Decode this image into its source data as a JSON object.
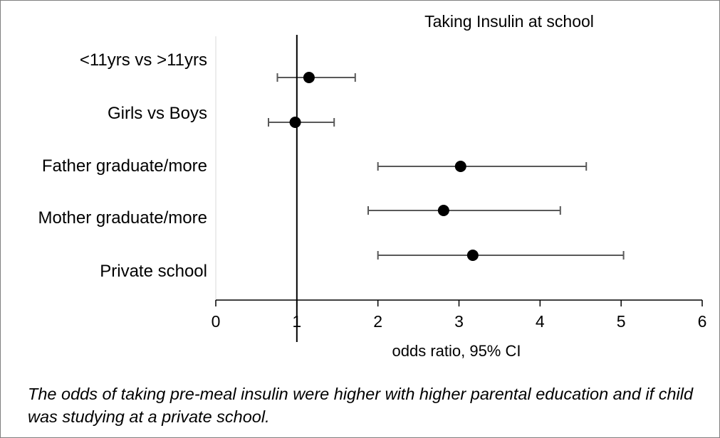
{
  "chart_data": {
    "type": "scatter",
    "subtype": "forest-plot",
    "title": "Taking Insulin at school",
    "xlabel": "odds ratio, 95% CI",
    "ylabel": "",
    "xlim": [
      0,
      6
    ],
    "xticks": [
      "0",
      "1",
      "2",
      "3",
      "4",
      "5",
      "6"
    ],
    "reference_line": 1,
    "categories": [
      "<11yrs vs >11yrs",
      "Girls vs Boys",
      "Father graduate/more",
      "Mother graduate/more",
      "Private school"
    ],
    "estimates": [
      {
        "or": 1.15,
        "lower": 0.76,
        "upper": 1.72
      },
      {
        "or": 0.98,
        "lower": 0.65,
        "upper": 1.46
      },
      {
        "or": 3.02,
        "lower": 2.0,
        "upper": 4.57
      },
      {
        "or": 2.81,
        "lower": 1.88,
        "upper": 4.25
      },
      {
        "or": 3.17,
        "lower": 2.0,
        "upper": 5.03
      }
    ],
    "grid": false,
    "legend": "none",
    "colors": {
      "point": "#000000",
      "whisker": "#595959",
      "axis": "#000000"
    }
  },
  "caption": "The odds of taking pre-meal insulin were higher with higher parental education and if child was studying at a private school."
}
